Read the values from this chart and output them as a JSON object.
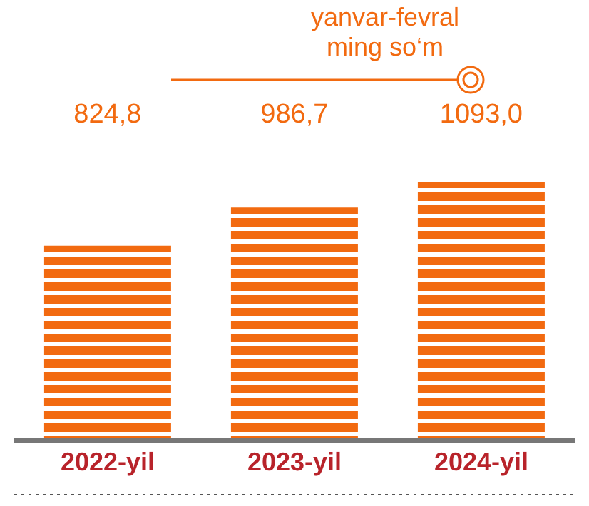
{
  "chart_data": {
    "type": "bar",
    "title": "yanvar-fevral",
    "subtitle": "ming so‘m",
    "categories": [
      "2022-yil",
      "2023-yil",
      "2024-yil"
    ],
    "values": [
      824.8,
      986.7,
      1093.0
    ],
    "value_labels": [
      "824,8",
      "986,7",
      "1093,0"
    ],
    "color": "#f26a10"
  }
}
